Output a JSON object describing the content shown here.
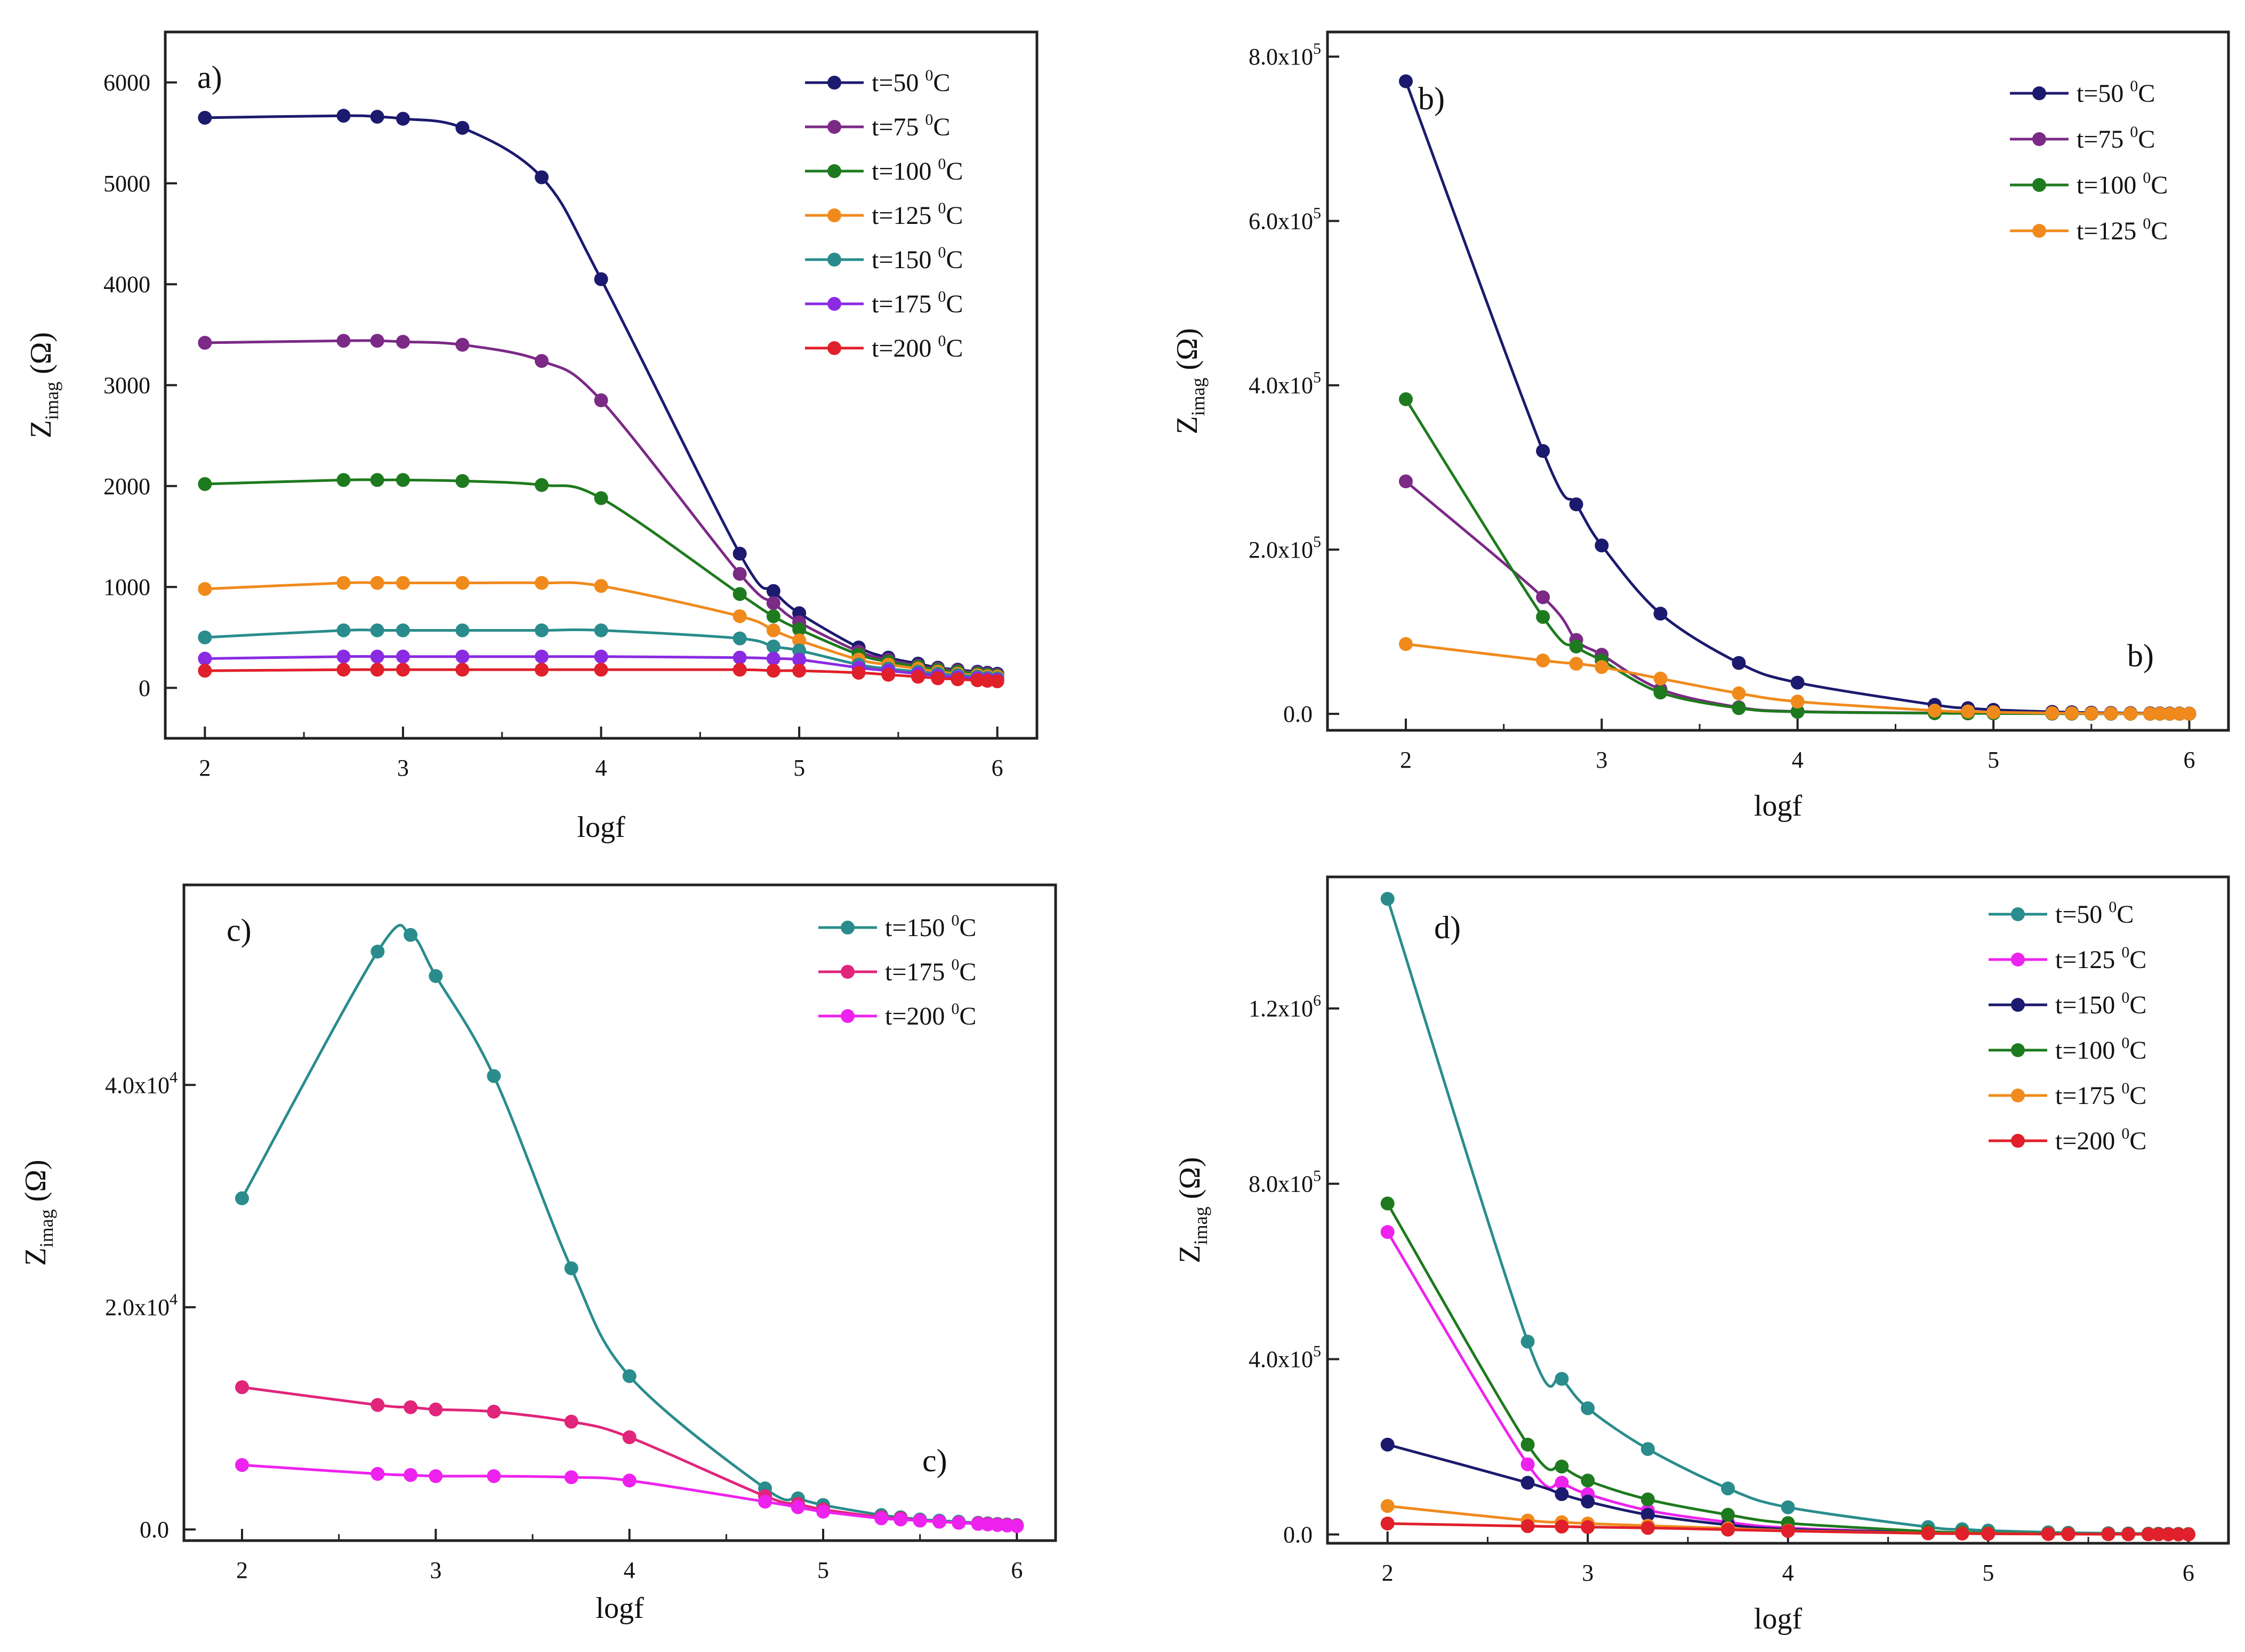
{
  "chart_data": [
    {
      "id": "a",
      "type": "line",
      "panel_label": "a)",
      "xlabel": "logf",
      "ylabel": "Z",
      "ylabel_sub": "imag",
      "ylabel_unit": "(Ω)",
      "xlim": [
        1.8,
        6.2
      ],
      "ylim": [
        -500,
        6500
      ],
      "xticks": [
        2,
        3,
        4,
        5,
        6
      ],
      "xtick_labels": [
        "2",
        "3",
        "4",
        "5",
        "6"
      ],
      "yticks": [
        0,
        1000,
        2000,
        3000,
        4000,
        5000,
        6000
      ],
      "ytick_labels": [
        "0",
        "1000",
        "2000",
        "3000",
        "4000",
        "5000",
        "6000"
      ],
      "legend_position": "top-right",
      "x": [
        2,
        2.7,
        2.87,
        3,
        3.3,
        3.7,
        4,
        4.7,
        4.87,
        5,
        5.3,
        5.45,
        5.6,
        5.7,
        5.8,
        5.9,
        5.95,
        6
      ],
      "series": [
        {
          "name": "t=50",
          "unit": "C",
          "color": "#1c1a6e",
          "values": [
            5650,
            5670,
            5660,
            5640,
            5550,
            5060,
            4050,
            1330,
            960,
            740,
            400,
            300,
            240,
            200,
            180,
            160,
            150,
            140
          ]
        },
        {
          "name": "t=75",
          "unit": "C",
          "color": "#7b2a86",
          "values": [
            3420,
            3440,
            3440,
            3430,
            3400,
            3240,
            2850,
            1130,
            840,
            650,
            360,
            280,
            220,
            190,
            170,
            150,
            140,
            130
          ]
        },
        {
          "name": "t=100",
          "unit": "C",
          "color": "#1e7a1e",
          "values": [
            2020,
            2060,
            2060,
            2060,
            2050,
            2010,
            1880,
            930,
            710,
            580,
            330,
            260,
            210,
            180,
            160,
            140,
            130,
            120
          ]
        },
        {
          "name": "t=125",
          "unit": "C",
          "color": "#f08a1c",
          "values": [
            980,
            1040,
            1040,
            1040,
            1040,
            1040,
            1010,
            710,
            570,
            470,
            280,
            230,
            190,
            160,
            140,
            125,
            115,
            110
          ]
        },
        {
          "name": "t=150",
          "unit": "C",
          "color": "#2a8c8c",
          "values": [
            500,
            570,
            570,
            570,
            570,
            570,
            570,
            490,
            410,
            370,
            230,
            190,
            160,
            140,
            125,
            110,
            100,
            95
          ]
        },
        {
          "name": "t=175",
          "unit": "C",
          "color": "#8a2be2",
          "values": [
            290,
            310,
            310,
            310,
            310,
            310,
            310,
            300,
            290,
            280,
            200,
            170,
            140,
            120,
            105,
            95,
            85,
            80
          ]
        },
        {
          "name": "t=200",
          "unit": "C",
          "color": "#e0202a",
          "values": [
            170,
            180,
            180,
            180,
            180,
            180,
            180,
            180,
            170,
            170,
            150,
            130,
            110,
            95,
            85,
            75,
            70,
            65
          ]
        }
      ]
    },
    {
      "id": "b",
      "type": "line",
      "panel_label": "b)",
      "annotation": "b)",
      "xlabel": "logf",
      "ylabel": "Z",
      "ylabel_sub": "imag",
      "ylabel_unit": "(Ω)",
      "xlim": [
        1.6,
        6.2
      ],
      "ylim": [
        -20000,
        830000
      ],
      "xticks": [
        2,
        3,
        4,
        5,
        6
      ],
      "xtick_labels": [
        "2",
        "3",
        "4",
        "5",
        "6"
      ],
      "yticks": [
        0,
        200000,
        400000,
        600000,
        800000
      ],
      "ytick_labels": [
        "0.0",
        "2.0x10",
        "4.0x10",
        "6.0x10",
        "8.0x10"
      ],
      "ytick_exponents": [
        "",
        "5",
        "5",
        "5",
        "5"
      ],
      "legend_position": "top-right",
      "x": [
        2,
        2.7,
        2.87,
        3,
        3.3,
        3.7,
        4,
        4.7,
        4.87,
        5,
        5.3,
        5.4,
        5.5,
        5.6,
        5.7,
        5.8,
        5.85,
        5.9,
        5.95,
        6
      ],
      "series": [
        {
          "name": "t=50",
          "unit": "C",
          "color": "#1c1a6e",
          "values": [
            770000,
            320000,
            255000,
            205000,
            122000,
            62000,
            38000,
            11000,
            7000,
            5000,
            2500,
            2000,
            1500,
            1200,
            1000,
            800,
            700,
            600,
            500,
            400
          ]
        },
        {
          "name": "t=75",
          "unit": "C",
          "color": "#7b2a86",
          "values": [
            283000,
            142000,
            90000,
            72000,
            30000,
            8000,
            3000,
            1000,
            800,
            600,
            400,
            300,
            300,
            200,
            200,
            200,
            200,
            100,
            100,
            100
          ]
        },
        {
          "name": "t=100",
          "unit": "C",
          "color": "#1e7a1e",
          "values": [
            383000,
            118000,
            82000,
            65000,
            26000,
            7000,
            2500,
            800,
            600,
            500,
            300,
            300,
            200,
            200,
            200,
            100,
            100,
            100,
            100,
            100
          ]
        },
        {
          "name": "t=125",
          "unit": "C",
          "color": "#f08a1c",
          "values": [
            85000,
            65000,
            61000,
            57000,
            43000,
            25000,
            15000,
            4000,
            3000,
            2000,
            1000,
            800,
            600,
            500,
            400,
            300,
            300,
            200,
            200,
            200
          ]
        }
      ]
    },
    {
      "id": "c",
      "type": "line",
      "panel_label": "c)",
      "annotation": "c)",
      "xlabel": "logf",
      "ylabel": "Z",
      "ylabel_sub": "imag",
      "ylabel_unit": "(Ω)",
      "xlim": [
        1.7,
        6.2
      ],
      "ylim": [
        -1000,
        58000
      ],
      "xticks": [
        2,
        3,
        4,
        5,
        6
      ],
      "xtick_labels": [
        "2",
        "3",
        "4",
        "5",
        "6"
      ],
      "yticks": [
        0,
        20000,
        40000
      ],
      "ytick_labels": [
        "0.0",
        "2.0x10",
        "4.0x10"
      ],
      "ytick_exponents": [
        "",
        "4",
        "4"
      ],
      "legend_position": "top-right",
      "x": [
        2,
        2.7,
        2.87,
        3,
        3.3,
        3.7,
        4,
        4.7,
        4.87,
        5,
        5.3,
        5.4,
        5.5,
        5.6,
        5.7,
        5.8,
        5.85,
        5.9,
        5.95,
        6
      ],
      "series": [
        {
          "name": "t=150",
          "unit": "C",
          "color": "#2a8c8c",
          "values": [
            29800,
            52000,
            53500,
            49800,
            40800,
            23500,
            13800,
            3700,
            2800,
            2200,
            1300,
            1100,
            900,
            800,
            700,
            600,
            550,
            500,
            450,
            400
          ]
        },
        {
          "name": "t=175",
          "unit": "C",
          "color": "#e0257a",
          "values": [
            12800,
            11200,
            11000,
            10800,
            10600,
            9700,
            8300,
            3000,
            2300,
            1800,
            1100,
            1000,
            800,
            700,
            600,
            550,
            500,
            450,
            400,
            350
          ]
        },
        {
          "name": "t=200",
          "unit": "C",
          "color": "#ee22ee",
          "values": [
            5800,
            5000,
            4900,
            4800,
            4800,
            4700,
            4400,
            2500,
            2000,
            1600,
            1000,
            900,
            800,
            700,
            600,
            500,
            450,
            400,
            350,
            300
          ]
        }
      ]
    },
    {
      "id": "d",
      "type": "line",
      "panel_label": "d)",
      "xlabel": "logf",
      "ylabel": "Z",
      "ylabel_sub": "imag",
      "ylabel_unit": "(Ω)",
      "xlim": [
        1.7,
        6.2
      ],
      "ylim": [
        -20000,
        1500000
      ],
      "xticks": [
        2,
        3,
        4,
        5,
        6
      ],
      "xtick_labels": [
        "2",
        "3",
        "4",
        "5",
        "6"
      ],
      "yticks": [
        0,
        400000,
        800000,
        1200000
      ],
      "ytick_labels": [
        "0.0",
        "4.0x10",
        "8.0x10",
        "1.2x10"
      ],
      "ytick_exponents": [
        "",
        "5",
        "5",
        "6"
      ],
      "legend_position": "top-right",
      "x": [
        2,
        2.7,
        2.87,
        3,
        3.3,
        3.7,
        4,
        4.7,
        4.87,
        5,
        5.3,
        5.4,
        5.6,
        5.7,
        5.8,
        5.85,
        5.9,
        5.95,
        6
      ],
      "series": [
        {
          "name": "t=50",
          "unit": "C",
          "color": "#2a8c8c",
          "values": [
            1450000,
            440000,
            355000,
            288000,
            195000,
            105000,
            62000,
            17000,
            12000,
            9000,
            5000,
            4000,
            3000,
            2500,
            2000,
            1800,
            1600,
            1400,
            1200
          ]
        },
        {
          "name": "t=125",
          "unit": "C",
          "color": "#ee22ee",
          "values": [
            690000,
            160000,
            118000,
            92000,
            55000,
            28000,
            15000,
            4000,
            3000,
            2200,
            1500,
            1200,
            900,
            800,
            700,
            600,
            500,
            400,
            300
          ]
        },
        {
          "name": "t=150",
          "unit": "C",
          "color": "#1c1a6e",
          "values": [
            205000,
            118000,
            92000,
            75000,
            45000,
            22000,
            12000,
            4000,
            3000,
            2500,
            1500,
            1200,
            900,
            800,
            700,
            600,
            500,
            400,
            300
          ]
        },
        {
          "name": "t=100",
          "unit": "C",
          "color": "#1e7a1e",
          "values": [
            755000,
            205000,
            155000,
            123000,
            80000,
            45000,
            26000,
            7000,
            5000,
            3500,
            2000,
            1600,
            1200,
            1000,
            900,
            800,
            700,
            600,
            500
          ]
        },
        {
          "name": "t=175",
          "unit": "C",
          "color": "#f08a1c",
          "values": [
            65000,
            32000,
            28000,
            25000,
            20000,
            14000,
            9000,
            3000,
            2500,
            2000,
            1200,
            1000,
            800,
            700,
            600,
            500,
            450,
            400,
            350
          ]
        },
        {
          "name": "t=200",
          "unit": "C",
          "color": "#e0202a",
          "values": [
            25000,
            19000,
            18000,
            17000,
            15000,
            11000,
            8000,
            2500,
            2000,
            1500,
            1000,
            900,
            700,
            600,
            500,
            450,
            400,
            350,
            300
          ]
        }
      ]
    }
  ]
}
